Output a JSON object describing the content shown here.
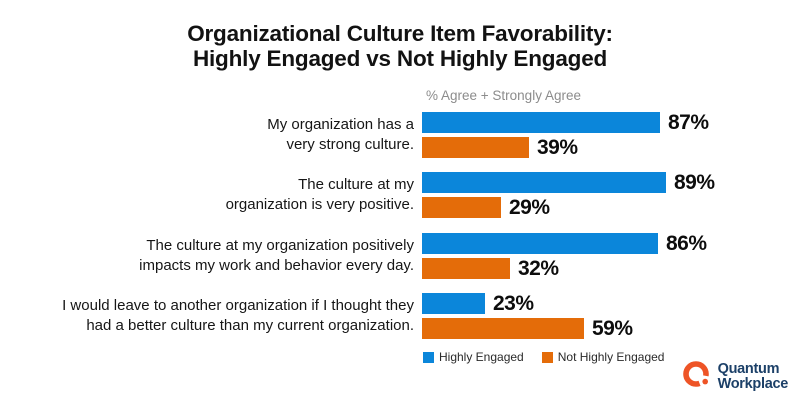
{
  "title": {
    "line1": "Organizational Culture Item Favorability:",
    "line2": "Highly Engaged vs Not Highly Engaged"
  },
  "chart_data": {
    "type": "bar",
    "orientation": "horizontal",
    "title": "Organizational Culture Item Favorability: Highly Engaged vs Not Highly Engaged",
    "axis_label": "% Agree + Strongly Agree",
    "categories": [
      "My organization has a very strong culture.",
      "The culture at my organization is very positive.",
      "The culture at my organization positively impacts my work and behavior every day.",
      "I would leave to another organization if I thought they had a better culture than my current organization."
    ],
    "category_wrap_lines": [
      [
        "My organization has a",
        "very strong culture."
      ],
      [
        "The culture at my",
        "organization is very positive."
      ],
      [
        "The culture at my organization positively",
        "impacts my work and behavior every day."
      ],
      [
        "I would leave to another organization if I thought they",
        "had a better culture than my current organization."
      ]
    ],
    "series": [
      {
        "name": "Highly Engaged",
        "color": "#0b86da",
        "values": [
          87,
          89,
          86,
          23
        ]
      },
      {
        "name": "Not Highly Engaged",
        "color": "#e46c09",
        "values": [
          39,
          29,
          32,
          59
        ]
      }
    ],
    "value_suffix": "%",
    "xlim": [
      0,
      100
    ],
    "grid": false,
    "legend_position": "bottom"
  },
  "logo": {
    "line1": "Quantum",
    "line2": "Workplace",
    "text_color": "#1c4068",
    "mark_color": "#ee5426"
  }
}
